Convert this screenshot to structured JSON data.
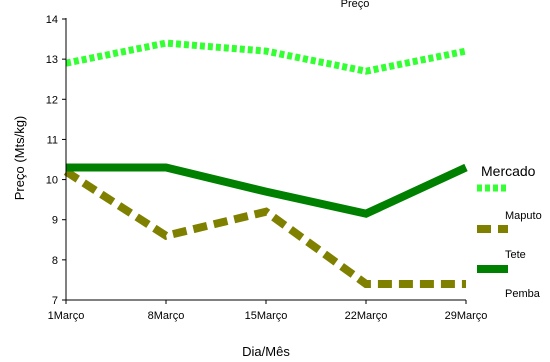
{
  "chart_data": {
    "type": "line",
    "title": "Preço",
    "xlabel": "Dia/Mês",
    "ylabel": "Preço (Mts/kg)",
    "categories": [
      "1Março",
      "8Março",
      "15Março",
      "22Março",
      "29Março"
    ],
    "ylim": [
      7,
      14
    ],
    "yticks": [
      7,
      8,
      9,
      10,
      11,
      12,
      13,
      14
    ],
    "grid": false,
    "legend": {
      "title": "Mercado",
      "position": "right"
    },
    "series": [
      {
        "name": "Maputo",
        "color": "#33ff33",
        "style": "dotted",
        "values": [
          12.9,
          13.4,
          13.2,
          12.7,
          13.2
        ]
      },
      {
        "name": "Tete",
        "color": "#808000",
        "style": "dashed",
        "values": [
          10.2,
          8.6,
          9.2,
          7.4,
          7.4
        ]
      },
      {
        "name": "Pemba",
        "color": "#008000",
        "style": "solid",
        "values": [
          10.3,
          10.3,
          9.7,
          9.15,
          10.3
        ]
      }
    ]
  }
}
